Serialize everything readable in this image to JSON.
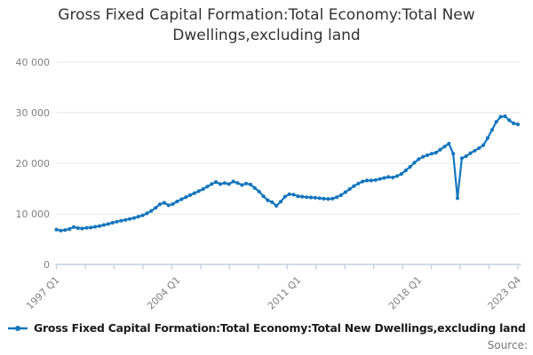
{
  "title": "Gross Fixed Capital Formation:Total Economy:Total New Dwellings,excluding land",
  "legend": {
    "label": "Gross Fixed Capital Formation:Total Economy:Total New Dwellings,excluding land"
  },
  "source_label": "Source:",
  "colors": {
    "line": "#1476bd",
    "grid": "#e6e6e6",
    "axis": "#c3cfe0",
    "tick_label": "#808080",
    "title_text": "#333333"
  },
  "chart_data": {
    "type": "line",
    "title": "Gross Fixed Capital Formation:Total Economy:Total New Dwellings,excluding land",
    "xlabel": "",
    "ylabel": "",
    "ylim": [
      0,
      40000
    ],
    "grid": "horizontal",
    "legend_position": "bottom-left",
    "x_start": "1997 Q1",
    "x_end": "2023 Q4",
    "x_frequency": "quarterly",
    "x_tick_labels": [
      "1997 Q1",
      "2004 Q1",
      "2011 Q1",
      "2018 Q1",
      "2023 Q4"
    ],
    "x_tick_quarter_indices": [
      0,
      28,
      56,
      84,
      107
    ],
    "y_ticks": [
      0,
      10000,
      20000,
      30000,
      40000
    ],
    "y_tick_labels": [
      "0",
      "10 000",
      "20 000",
      "30 000",
      "40 000"
    ],
    "series": [
      {
        "name": "Gross Fixed Capital Formation:Total Economy:Total New Dwellings,excluding land",
        "values": [
          6900,
          6700,
          6800,
          7000,
          7400,
          7200,
          7100,
          7250,
          7300,
          7450,
          7600,
          7800,
          8000,
          8250,
          8450,
          8650,
          8800,
          9000,
          9200,
          9450,
          9700,
          10100,
          10600,
          11200,
          11900,
          12200,
          11700,
          11950,
          12450,
          12900,
          13300,
          13700,
          14100,
          14500,
          14900,
          15400,
          15900,
          16300,
          15900,
          16100,
          15900,
          16400,
          16100,
          15700,
          16000,
          15800,
          15100,
          14400,
          13500,
          12700,
          12300,
          11600,
          12400,
          13400,
          13900,
          13800,
          13500,
          13400,
          13300,
          13250,
          13200,
          13100,
          13000,
          12950,
          13000,
          13300,
          13700,
          14300,
          14900,
          15500,
          16000,
          16400,
          16600,
          16600,
          16700,
          16900,
          17100,
          17300,
          17200,
          17500,
          17900,
          18600,
          19300,
          20100,
          20800,
          21300,
          21600,
          21900,
          22100,
          22700,
          23300,
          23900,
          21900,
          13100,
          21000,
          21400,
          22000,
          22500,
          23000,
          23600,
          25000,
          26600,
          28200,
          29200,
          29300,
          28500,
          27900,
          27700
        ]
      }
    ]
  }
}
